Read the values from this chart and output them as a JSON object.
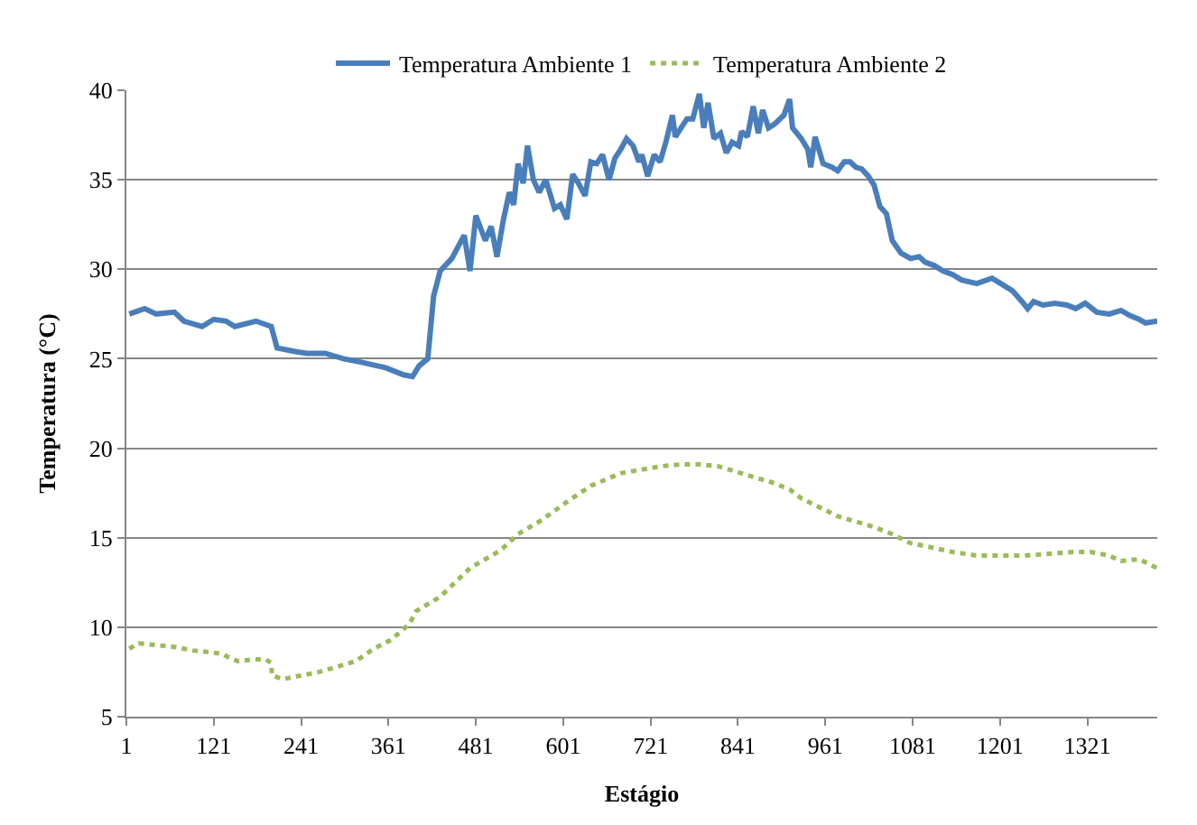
{
  "chart_data": {
    "type": "line",
    "xlabel": "Estágio",
    "ylabel": "Temperatura (°C)",
    "xlim": [
      1,
      1417
    ],
    "xticks": [
      1,
      121,
      241,
      361,
      481,
      601,
      721,
      841,
      961,
      1081,
      1201,
      1321
    ],
    "ylim": [
      5,
      40
    ],
    "yticks": [
      5,
      10,
      15,
      20,
      25,
      30,
      35,
      40
    ],
    "grid": "y",
    "legend": "top",
    "marker": "none",
    "series": [
      {
        "name": "Temperatura Ambiente 1",
        "color": "#4a7ebb",
        "line_style": "solid",
        "x": [
          5,
          26,
          42,
          67,
          80,
          105,
          121,
          138,
          150,
          179,
          200,
          208,
          233,
          249,
          274,
          299,
          324,
          357,
          382,
          394,
          403,
          415,
          423,
          432,
          448,
          465,
          473,
          481,
          494,
          502,
          510,
          519,
          527,
          533,
          539,
          546,
          552,
          560,
          568,
          577,
          589,
          597,
          606,
          614,
          622,
          631,
          639,
          647,
          655,
          664,
          672,
          680,
          688,
          697,
          705,
          709,
          717,
          726,
          734,
          742,
          751,
          755,
          763,
          771,
          779,
          788,
          794,
          800,
          808,
          817,
          825,
          833,
          842,
          846,
          854,
          862,
          869,
          875,
          883,
          891,
          904,
          912,
          916,
          928,
          937,
          941,
          947,
          958,
          970,
          978,
          987,
          995,
          1003,
          1011,
          1020,
          1028,
          1036,
          1045,
          1053,
          1065,
          1078,
          1090,
          1098,
          1111,
          1123,
          1136,
          1148,
          1169,
          1190,
          1202,
          1218,
          1231,
          1239,
          1247,
          1260,
          1276,
          1293,
          1305,
          1318,
          1334,
          1351,
          1367,
          1380,
          1392,
          1401,
          1417
        ],
        "values": [
          27.5,
          27.8,
          27.5,
          27.6,
          27.1,
          26.8,
          27.2,
          27.1,
          26.8,
          27.1,
          26.8,
          25.6,
          25.4,
          25.3,
          25.3,
          25.0,
          24.8,
          24.5,
          24.1,
          24.0,
          24.6,
          25.0,
          28.5,
          29.9,
          30.6,
          31.9,
          29.9,
          33.0,
          31.6,
          32.4,
          30.7,
          32.8,
          34.3,
          33.6,
          35.9,
          34.8,
          36.9,
          35.0,
          34.3,
          35.0,
          33.4,
          33.6,
          32.8,
          35.3,
          34.8,
          34.1,
          36.0,
          35.9,
          36.4,
          35.0,
          36.2,
          36.7,
          37.3,
          36.9,
          36.0,
          36.4,
          35.2,
          36.4,
          36.0,
          37.1,
          38.6,
          37.4,
          37.9,
          38.4,
          38.4,
          39.8,
          37.9,
          39.3,
          37.3,
          37.6,
          36.5,
          37.1,
          36.9,
          37.7,
          37.4,
          39.1,
          37.6,
          38.9,
          37.9,
          38.1,
          38.6,
          39.5,
          37.9,
          37.3,
          36.7,
          35.7,
          37.4,
          35.9,
          35.7,
          35.5,
          36.0,
          36.0,
          35.7,
          35.6,
          35.2,
          34.7,
          33.5,
          33.1,
          31.6,
          30.9,
          30.6,
          30.7,
          30.4,
          30.2,
          29.9,
          29.7,
          29.4,
          29.2,
          29.5,
          29.2,
          28.8,
          28.2,
          27.8,
          28.2,
          28.0,
          28.1,
          28.0,
          27.8,
          28.1,
          27.6,
          27.5,
          27.7,
          27.4,
          27.2,
          27.0,
          27.1
        ]
      },
      {
        "name": "Temperatura Ambiente 2",
        "color": "#9bbb59",
        "line_style": "dotted",
        "x": [
          5,
          18,
          42,
          67,
          92,
          117,
          133,
          142,
          154,
          175,
          192,
          200,
          201,
          216,
          241,
          266,
          291,
          316,
          341,
          365,
          390,
          399,
          432,
          473,
          515,
          539,
          572,
          606,
          639,
          680,
          722,
          738,
          763,
          788,
          813,
          838,
          862,
          887,
          912,
          928,
          953,
          978,
          1003,
          1028,
          1053,
          1078,
          1102,
          1136,
          1169,
          1202,
          1235,
          1268,
          1301,
          1326,
          1351,
          1367,
          1392,
          1417
        ],
        "values": [
          8.8,
          9.1,
          9.0,
          8.9,
          8.7,
          8.6,
          8.5,
          8.3,
          8.1,
          8.2,
          8.2,
          8.0,
          7.3,
          7.1,
          7.3,
          7.5,
          7.8,
          8.1,
          8.8,
          9.3,
          10.2,
          10.9,
          11.7,
          13.3,
          14.3,
          15.2,
          16.0,
          17.0,
          17.9,
          18.6,
          18.9,
          19.0,
          19.1,
          19.1,
          19.0,
          18.7,
          18.4,
          18.1,
          17.7,
          17.2,
          16.7,
          16.2,
          15.9,
          15.6,
          15.2,
          14.7,
          14.5,
          14.2,
          14.0,
          14.0,
          14.0,
          14.1,
          14.2,
          14.2,
          14.0,
          13.7,
          13.8,
          13.3
        ]
      }
    ]
  }
}
